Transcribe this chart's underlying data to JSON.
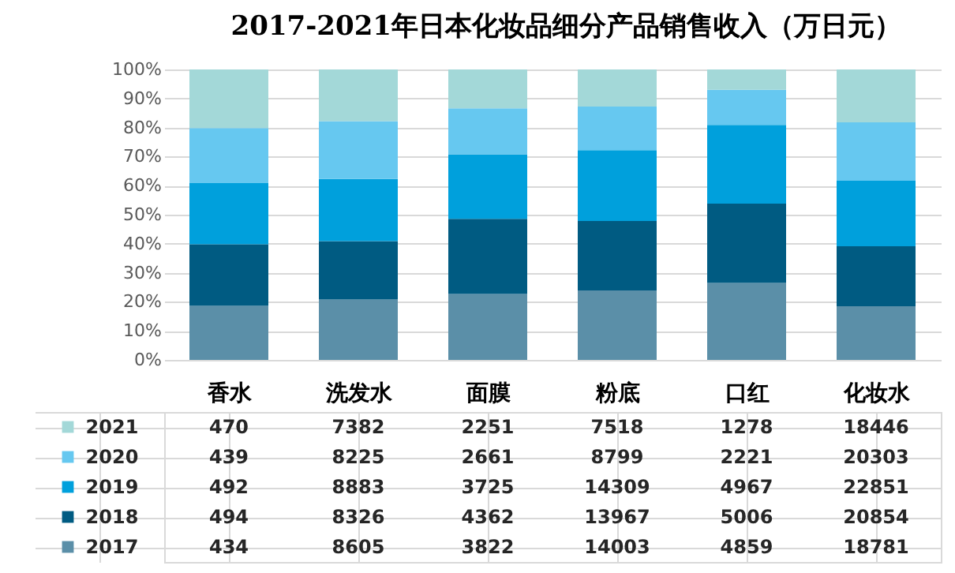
{
  "chart_data": {
    "type": "bar",
    "stacked": true,
    "title": "2017-2021年日本化妆品细分产品销售收入（万日元）",
    "categories": [
      "香水",
      "洗发水",
      "面膜",
      "粉底",
      "口红",
      "化妆水"
    ],
    "series": [
      {
        "name": "2017",
        "color": "#5b8fa8",
        "values": [
          18.6,
          20.8,
          22.7,
          23.9,
          26.5,
          18.5
        ]
      },
      {
        "name": "2018",
        "color": "#005b82",
        "values": [
          21.2,
          20.1,
          25.9,
          23.9,
          27.3,
          20.6
        ]
      },
      {
        "name": "2019",
        "color": "#00a0dc",
        "values": [
          21.1,
          21.4,
          22.2,
          24.4,
          27.1,
          22.6
        ]
      },
      {
        "name": "2020",
        "color": "#66c8f0",
        "values": [
          18.9,
          19.9,
          15.8,
          15.0,
          12.1,
          20.1
        ]
      },
      {
        "name": "2021",
        "color": "#a3d8d8",
        "values": [
          20.2,
          17.8,
          13.4,
          12.8,
          7.0,
          18.2
        ]
      }
    ],
    "ylim": [
      0,
      100
    ],
    "yticks": [
      {
        "value": 0,
        "label": "0%"
      },
      {
        "value": 10,
        "label": "10%"
      },
      {
        "value": 20,
        "label": "20%"
      },
      {
        "value": 30,
        "label": "30%"
      },
      {
        "value": 40,
        "label": "40%"
      },
      {
        "value": 50,
        "label": "50%"
      },
      {
        "value": 60,
        "label": "60%"
      },
      {
        "value": 70,
        "label": "70%"
      },
      {
        "value": 80,
        "label": "80%"
      },
      {
        "value": 90,
        "label": "90%"
      },
      {
        "value": 100,
        "label": "100%"
      }
    ],
    "annotations": [
      "470",
      "7382",
      "2251",
      "7518",
      "1278",
      "18446",
      "439",
      "8225",
      "2661",
      "8799",
      "2221",
      "20303",
      "492",
      "8883",
      "3725",
      "14309",
      "4967",
      "22851",
      "494",
      "8326",
      "4362",
      "13967",
      "5006",
      "20854",
      "434",
      "8605",
      "3822",
      "14003",
      "4859",
      "18781"
    ],
    "grid": "y",
    "legend": "bottom"
  }
}
